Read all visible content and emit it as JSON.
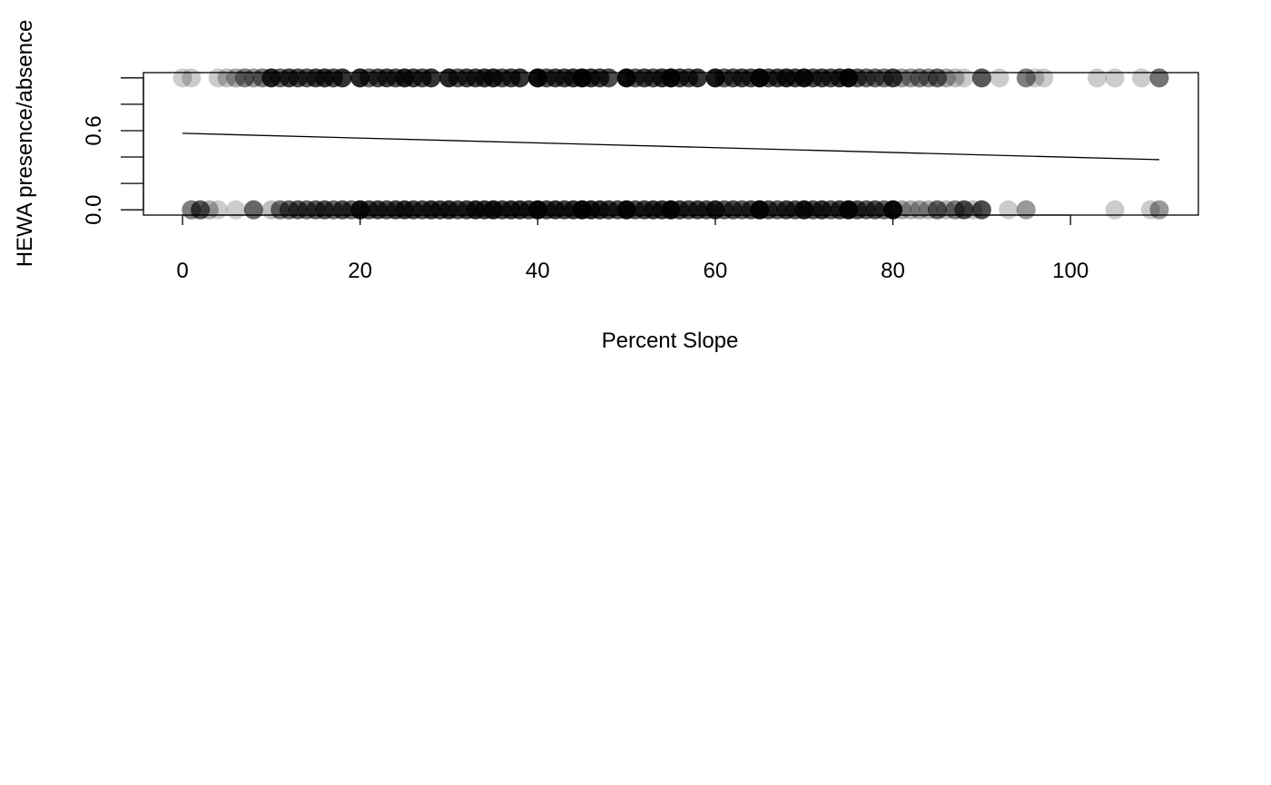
{
  "chart_data": {
    "type": "scatter",
    "title": "",
    "xlabel": "Percent Slope",
    "ylabel": "HEWA presence/absence",
    "xlim": [
      -4.4,
      114.4
    ],
    "ylim": [
      -0.04,
      1.04
    ],
    "x_ticks": [
      {
        "value": 0,
        "label": "0"
      },
      {
        "value": 20,
        "label": "20"
      },
      {
        "value": 40,
        "label": "40"
      },
      {
        "value": 60,
        "label": "60"
      },
      {
        "value": 80,
        "label": "80"
      },
      {
        "value": 100,
        "label": "100"
      }
    ],
    "y_ticks": [
      {
        "value": 0.0,
        "label": "0.0"
      },
      {
        "value": 0.2,
        "label": ""
      },
      {
        "value": 0.4,
        "label": ""
      },
      {
        "value": 0.6,
        "label": "0.6"
      },
      {
        "value": 0.8,
        "label": ""
      },
      {
        "value": 1.0,
        "label": ""
      }
    ],
    "point_color": "#000000",
    "line_color": "#000000",
    "fit_line": {
      "x": [
        0,
        110
      ],
      "y": [
        0.58,
        0.38
      ]
    },
    "series": [
      {
        "name": "presence",
        "y": 1,
        "points": [
          [
            0,
            0.2
          ],
          [
            1,
            0.2
          ],
          [
            4,
            0.2
          ],
          [
            5,
            0.25
          ],
          [
            6,
            0.35
          ],
          [
            7,
            0.5
          ],
          [
            8,
            0.4
          ],
          [
            9,
            0.5
          ],
          [
            10,
            0.85
          ],
          [
            11,
            0.6
          ],
          [
            12,
            0.75
          ],
          [
            13,
            0.7
          ],
          [
            14,
            0.65
          ],
          [
            15,
            0.75
          ],
          [
            16,
            0.8
          ],
          [
            17,
            0.7
          ],
          [
            18,
            0.8
          ],
          [
            20,
            0.85
          ],
          [
            21,
            0.6
          ],
          [
            22,
            0.7
          ],
          [
            23,
            0.75
          ],
          [
            24,
            0.7
          ],
          [
            25,
            0.85
          ],
          [
            26,
            0.75
          ],
          [
            27,
            0.7
          ],
          [
            28,
            0.8
          ],
          [
            30,
            0.85
          ],
          [
            31,
            0.65
          ],
          [
            32,
            0.75
          ],
          [
            33,
            0.75
          ],
          [
            34,
            0.8
          ],
          [
            35,
            0.85
          ],
          [
            36,
            0.7
          ],
          [
            37,
            0.75
          ],
          [
            38,
            0.8
          ],
          [
            40,
            0.95
          ],
          [
            41,
            0.7
          ],
          [
            42,
            0.75
          ],
          [
            43,
            0.75
          ],
          [
            44,
            0.8
          ],
          [
            45,
            0.95
          ],
          [
            46,
            0.8
          ],
          [
            47,
            0.75
          ],
          [
            48,
            0.7
          ],
          [
            50,
            0.95
          ],
          [
            51,
            0.65
          ],
          [
            52,
            0.75
          ],
          [
            53,
            0.7
          ],
          [
            54,
            0.8
          ],
          [
            55,
            0.95
          ],
          [
            56,
            0.75
          ],
          [
            57,
            0.7
          ],
          [
            58,
            0.8
          ],
          [
            60,
            0.9
          ],
          [
            61,
            0.65
          ],
          [
            62,
            0.7
          ],
          [
            63,
            0.75
          ],
          [
            64,
            0.7
          ],
          [
            65,
            0.95
          ],
          [
            66,
            0.7
          ],
          [
            67,
            0.75
          ],
          [
            68,
            0.85
          ],
          [
            69,
            0.75
          ],
          [
            70,
            0.9
          ],
          [
            71,
            0.7
          ],
          [
            72,
            0.75
          ],
          [
            73,
            0.7
          ],
          [
            74,
            0.8
          ],
          [
            75,
            0.95
          ],
          [
            76,
            0.65
          ],
          [
            77,
            0.6
          ],
          [
            78,
            0.6
          ],
          [
            79,
            0.55
          ],
          [
            80,
            0.75
          ],
          [
            81,
            0.4
          ],
          [
            82,
            0.4
          ],
          [
            83,
            0.5
          ],
          [
            84,
            0.45
          ],
          [
            85,
            0.6
          ],
          [
            86,
            0.35
          ],
          [
            87,
            0.25
          ],
          [
            88,
            0.2
          ],
          [
            90,
            0.65
          ],
          [
            92,
            0.2
          ],
          [
            95,
            0.5
          ],
          [
            96,
            0.2
          ],
          [
            97,
            0.2
          ],
          [
            103,
            0.2
          ],
          [
            105,
            0.2
          ],
          [
            108,
            0.2
          ],
          [
            110,
            0.55
          ]
        ]
      },
      {
        "name": "absence",
        "y": 0,
        "points": [
          [
            1,
            0.5
          ],
          [
            2,
            0.65
          ],
          [
            3,
            0.3
          ],
          [
            4,
            0.2
          ],
          [
            6,
            0.2
          ],
          [
            8,
            0.6
          ],
          [
            10,
            0.25
          ],
          [
            11,
            0.55
          ],
          [
            12,
            0.6
          ],
          [
            13,
            0.65
          ],
          [
            14,
            0.6
          ],
          [
            15,
            0.65
          ],
          [
            16,
            0.7
          ],
          [
            17,
            0.6
          ],
          [
            18,
            0.7
          ],
          [
            19,
            0.6
          ],
          [
            20,
            0.9
          ],
          [
            21,
            0.7
          ],
          [
            22,
            0.75
          ],
          [
            23,
            0.7
          ],
          [
            24,
            0.75
          ],
          [
            25,
            0.8
          ],
          [
            26,
            0.75
          ],
          [
            27,
            0.7
          ],
          [
            28,
            0.8
          ],
          [
            29,
            0.75
          ],
          [
            30,
            0.8
          ],
          [
            31,
            0.7
          ],
          [
            32,
            0.75
          ],
          [
            33,
            0.85
          ],
          [
            34,
            0.8
          ],
          [
            35,
            0.9
          ],
          [
            36,
            0.75
          ],
          [
            37,
            0.8
          ],
          [
            38,
            0.8
          ],
          [
            39,
            0.75
          ],
          [
            40,
            0.95
          ],
          [
            41,
            0.75
          ],
          [
            42,
            0.8
          ],
          [
            43,
            0.75
          ],
          [
            44,
            0.8
          ],
          [
            45,
            0.95
          ],
          [
            46,
            0.85
          ],
          [
            47,
            0.8
          ],
          [
            48,
            0.75
          ],
          [
            49,
            0.7
          ],
          [
            50,
            0.95
          ],
          [
            51,
            0.7
          ],
          [
            52,
            0.75
          ],
          [
            53,
            0.8
          ],
          [
            54,
            0.8
          ],
          [
            55,
            0.95
          ],
          [
            56,
            0.75
          ],
          [
            57,
            0.7
          ],
          [
            58,
            0.75
          ],
          [
            59,
            0.7
          ],
          [
            60,
            0.85
          ],
          [
            61,
            0.65
          ],
          [
            62,
            0.7
          ],
          [
            63,
            0.65
          ],
          [
            64,
            0.7
          ],
          [
            65,
            0.95
          ],
          [
            66,
            0.7
          ],
          [
            67,
            0.65
          ],
          [
            68,
            0.75
          ],
          [
            69,
            0.7
          ],
          [
            70,
            0.9
          ],
          [
            71,
            0.7
          ],
          [
            72,
            0.8
          ],
          [
            73,
            0.65
          ],
          [
            74,
            0.75
          ],
          [
            75,
            0.95
          ],
          [
            76,
            0.7
          ],
          [
            77,
            0.65
          ],
          [
            78,
            0.7
          ],
          [
            79,
            0.6
          ],
          [
            80,
            0.95
          ],
          [
            81,
            0.35
          ],
          [
            82,
            0.3
          ],
          [
            83,
            0.35
          ],
          [
            84,
            0.3
          ],
          [
            85,
            0.6
          ],
          [
            86,
            0.3
          ],
          [
            87,
            0.5
          ],
          [
            88,
            0.7
          ],
          [
            89,
            0.25
          ],
          [
            90,
            0.7
          ],
          [
            93,
            0.2
          ],
          [
            95,
            0.4
          ],
          [
            105,
            0.2
          ],
          [
            109,
            0.2
          ],
          [
            110,
            0.4
          ]
        ]
      }
    ]
  }
}
